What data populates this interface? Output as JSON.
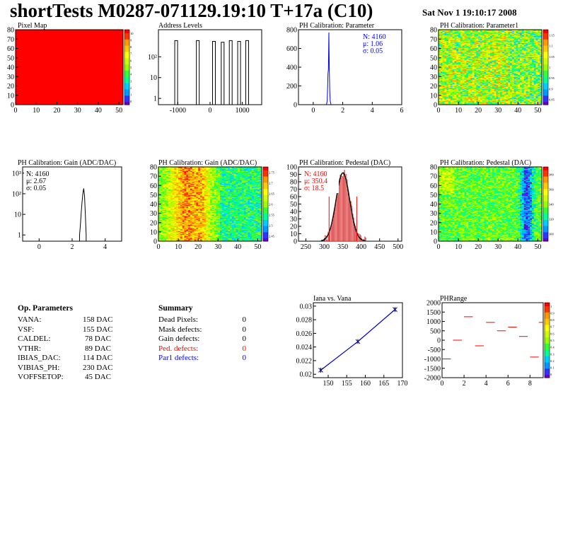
{
  "header": {
    "title": "shortTests M0287-071129.19:10 T+17a (C10)",
    "date": "Sat Nov  1 19:10:17 2008"
  },
  "colors": {
    "red": "#ff0000",
    "blue": "#0000ff",
    "hist_fill_red": "#cc0000"
  },
  "chart_data": [
    {
      "id": "pixel_map",
      "type": "heatmap",
      "title": "Pixel Map",
      "xlim": [
        0,
        52
      ],
      "ylim": [
        0,
        80
      ],
      "xticks": [
        "0",
        "10",
        "20",
        "30",
        "40",
        "50"
      ],
      "yticks": [
        "0",
        "10",
        "20",
        "30",
        "40",
        "50",
        "60",
        "70",
        "80"
      ],
      "fill": "uniform",
      "value": 10,
      "palette_labels": [
        "0",
        "1",
        "2",
        "3",
        "4",
        "5",
        "6",
        "7",
        "8",
        "9",
        "10"
      ]
    },
    {
      "id": "address_levels",
      "type": "bar",
      "title": "Address Levels",
      "xlim": [
        -1600,
        1600
      ],
      "log_y": true,
      "ylim": [
        0.5,
        2000
      ],
      "xticks": [
        "-1000",
        "0",
        "1000"
      ],
      "yticks": [
        "1",
        "10",
        "10²"
      ],
      "peaks": [
        {
          "x": -1050,
          "y": 600
        },
        {
          "x": -380,
          "y": 600
        },
        {
          "x": 120,
          "y": 550
        },
        {
          "x": 390,
          "y": 500
        },
        {
          "x": 640,
          "y": 600
        },
        {
          "x": 900,
          "y": 550
        },
        {
          "x": 1150,
          "y": 600
        }
      ]
    },
    {
      "id": "ph_cal_param",
      "type": "bar",
      "title": "PH Calibration: Parameter",
      "xlim": [
        -1,
        6
      ],
      "ylim": [
        0,
        800
      ],
      "xticks": [
        "0",
        "2",
        "4",
        "6"
      ],
      "yticks": [
        "0",
        "200",
        "400",
        "600",
        "800"
      ],
      "stats": [
        "N: 4160",
        "μ: 1.06",
        "σ: 0.05"
      ],
      "stats_color": "blue",
      "series": [
        {
          "x": [
            0.9,
            0.95,
            1.0,
            1.03,
            1.06,
            1.09,
            1.12,
            1.15,
            1.2
          ],
          "values": [
            5,
            40,
            330,
            380,
            770,
            370,
            150,
            40,
            5
          ]
        }
      ]
    },
    {
      "id": "ph_cal_param1",
      "type": "heatmap",
      "title": "PH Calibration: Parameter1",
      "xlim": [
        0,
        52
      ],
      "ylim": [
        0,
        80
      ],
      "xticks": [
        "0",
        "10",
        "20",
        "30",
        "40",
        "50"
      ],
      "yticks": [
        "0",
        "10",
        "20",
        "30",
        "40",
        "50",
        "60",
        "70",
        "80"
      ],
      "zlim": [
        0.8,
        1.2
      ],
      "palette_labels": [
        "0.85",
        "0.9",
        "0.95",
        "1",
        "1.05",
        "1.1",
        "1.15"
      ],
      "profile": "random-mid-high"
    },
    {
      "id": "ph_cal_gain",
      "type": "bar",
      "title": "PH Calibration: Gain (ADC/DAC)",
      "xlim": [
        -1,
        5
      ],
      "log_y": true,
      "ylim": [
        0.5,
        2000
      ],
      "xticks": [
        "0",
        "2",
        "4"
      ],
      "yticks": [
        "1",
        "10",
        "10²",
        "10³"
      ],
      "stats": [
        "N: 4160",
        "μ: 2.67",
        "σ: 0.05"
      ],
      "stats_color": "black",
      "series": [
        {
          "x": [
            2.45,
            2.5,
            2.55,
            2.6,
            2.65,
            2.7,
            2.75,
            2.8,
            2.85
          ],
          "values": [
            1,
            3,
            12,
            40,
            100,
            180,
            80,
            10,
            1
          ]
        }
      ]
    },
    {
      "id": "ph_cal_gain_map",
      "type": "heatmap",
      "title": "PH Calibration: Gain (ADC/DAC)",
      "xlim": [
        0,
        52
      ],
      "ylim": [
        0,
        80
      ],
      "xticks": [
        "0",
        "10",
        "20",
        "30",
        "40",
        "50"
      ],
      "yticks": [
        "0",
        "10",
        "20",
        "30",
        "40",
        "50",
        "60",
        "70",
        "80"
      ],
      "zlim": [
        2.4,
        2.8
      ],
      "palette_labels": [
        "2.45",
        "2.5",
        "2.55",
        "2.6",
        "2.65",
        "2.7",
        "2.75"
      ],
      "profile": "hot-left"
    },
    {
      "id": "ph_cal_pedestal",
      "type": "bar",
      "title": "PH Calibration: Pedestal (DAC)",
      "xlim": [
        230,
        510
      ],
      "ylim": [
        0,
        100
      ],
      "xticks": [
        "250",
        "300",
        "350",
        "400",
        "450",
        "500"
      ],
      "yticks": [
        "0",
        "10",
        "20",
        "30",
        "40",
        "50",
        "60",
        "70",
        "80",
        "90",
        "100"
      ],
      "stats": [
        "N: 4160",
        "μ: 350.4",
        "σ: 18.5"
      ],
      "stats_color": "red",
      "mean": 350.4,
      "sigma": 18.5,
      "peak": 92,
      "cut_lines": [
        313,
        388
      ]
    },
    {
      "id": "ph_cal_pedestal_map",
      "type": "heatmap",
      "title": "PH Calibration: Pedestal (DAC)",
      "xlim": [
        0,
        52
      ],
      "ylim": [
        0,
        80
      ],
      "xticks": [
        "0",
        "10",
        "20",
        "30",
        "40",
        "50"
      ],
      "yticks": [
        "0",
        "10",
        "20",
        "30",
        "40",
        "50",
        "60",
        "70",
        "80"
      ],
      "zlim": [
        300,
        400
      ],
      "palette_labels": [
        "300",
        "320",
        "340",
        "360",
        "380"
      ],
      "profile": "cool-right"
    },
    {
      "id": "iana_vana",
      "type": "line",
      "title": "Iana vs. Vana",
      "xlim": [
        146,
        170
      ],
      "ylim": [
        0.0195,
        0.0305
      ],
      "xticks": [
        "150",
        "155",
        "160",
        "165",
        "170"
      ],
      "yticks": [
        "0.02",
        "0.022",
        "0.024",
        "0.026",
        "0.028",
        "0.03"
      ],
      "x": [
        148,
        158,
        168
      ],
      "y": [
        0.0206,
        0.0248,
        0.0295
      ]
    },
    {
      "id": "ph_range",
      "type": "scatter",
      "title": "PHRange",
      "xlim": [
        0,
        9.2
      ],
      "ylim": [
        -2000,
        2000
      ],
      "xticks": [
        "0",
        "2",
        "4",
        "6",
        "8"
      ],
      "yticks": [
        "-2000",
        "-1500",
        "-1000",
        "-500",
        "0",
        "500",
        "1000",
        "1500",
        "2000"
      ],
      "palette_labels": [
        "0",
        "0.1",
        "0.2",
        "0.3",
        "0.4",
        "0.5",
        "0.6",
        "0.7",
        "0.8",
        "0.9",
        "1"
      ],
      "segments": [
        {
          "x0": 0,
          "x1": 0.8,
          "y": -1000
        },
        {
          "x0": 1,
          "x1": 1.8,
          "y": 0
        },
        {
          "x0": 2,
          "x1": 2.8,
          "y": 1250
        },
        {
          "x0": 3,
          "x1": 3.8,
          "y": -300
        },
        {
          "x0": 4,
          "x1": 4.8,
          "y": 950
        },
        {
          "x0": 5,
          "x1": 5.8,
          "y": 500
        },
        {
          "x0": 6,
          "x1": 6.8,
          "y": 700
        },
        {
          "x0": 7,
          "x1": 7.8,
          "y": 200
        },
        {
          "x0": 8,
          "x1": 8.8,
          "y": -900
        },
        {
          "x0": 8.8,
          "x1": 9.2,
          "y": 950
        }
      ]
    }
  ],
  "op_params": {
    "heading": "Op. Parameters",
    "rows": [
      {
        "name": "VANA:",
        "value": "158 DAC"
      },
      {
        "name": "VSF:",
        "value": "155 DAC"
      },
      {
        "name": "CALDEL:",
        "value": "78 DAC"
      },
      {
        "name": "VTHR:",
        "value": "89 DAC"
      },
      {
        "name": "IBIAS_DAC:",
        "value": "114 DAC"
      },
      {
        "name": "VIBIAS_PH:",
        "value": "230 DAC"
      },
      {
        "name": "VOFFSETOP:",
        "value": "45 DAC"
      }
    ]
  },
  "summary": {
    "heading": "Summary",
    "rows": [
      {
        "name": "Dead Pixels:",
        "value": "0",
        "color": "black"
      },
      {
        "name": "Mask defects:",
        "value": "0",
        "color": "black"
      },
      {
        "name": "Gain defects:",
        "value": "0",
        "color": "black"
      },
      {
        "name": "Ped. defects:",
        "value": "0",
        "color": "red"
      },
      {
        "name": "Par1 defects:",
        "value": "0",
        "color": "blue"
      }
    ]
  }
}
